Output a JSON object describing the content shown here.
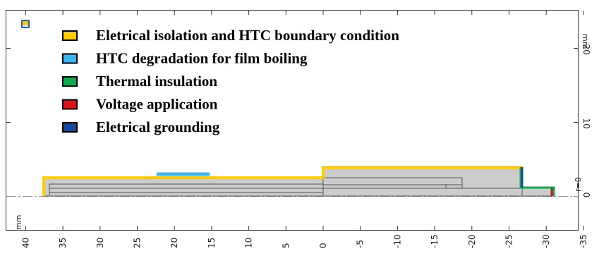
{
  "colors": {
    "isolation_htc": "#ffcc00",
    "film_boiling": "#3fb5ef",
    "thermal_insulation": "#13a84c",
    "voltage": "#d8131b",
    "grounding": "#1449a0",
    "geometry_fill": "#cccccc",
    "geometry_edge": "#555555"
  },
  "legend": {
    "items": [
      {
        "label": "Eletrical isolation and HTC boundary condition",
        "color": "#ffcc00"
      },
      {
        "label": "HTC degradation for film boiling",
        "color": "#3fb5ef"
      },
      {
        "label": "Thermal insulation",
        "color": "#13a84c"
      },
      {
        "label": "Voltage application",
        "color": "#d8131b"
      },
      {
        "label": "Eletrical grounding",
        "color": "#1449a0"
      }
    ]
  },
  "axes": {
    "x_unit": "mm",
    "y_unit": "mm",
    "x_ticks": [
      "40",
      "35",
      "30",
      "25",
      "20",
      "15",
      "10",
      "5",
      "0",
      "-5",
      "-10",
      "-15",
      "-20",
      "-25",
      "-30",
      "-35"
    ],
    "y_ticks": [
      "0",
      "10",
      "20"
    ],
    "axis_label": "r=0"
  },
  "toolbar": {
    "icon": "comsol-logo-icon"
  }
}
